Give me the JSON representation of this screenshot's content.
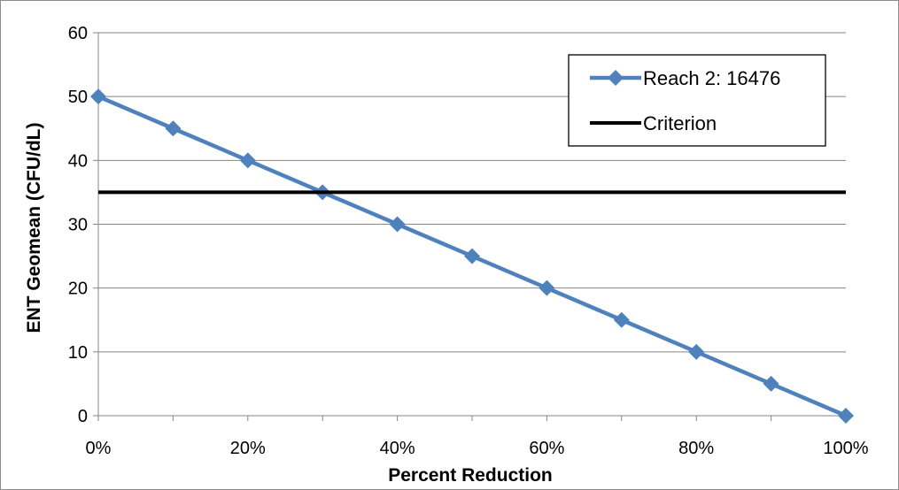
{
  "chart_data": {
    "type": "line",
    "xlabel": "Percent Reduction",
    "ylabel": "ENT Geomean (CFU/dL)",
    "x": [
      "0%",
      "10%",
      "20%",
      "30%",
      "40%",
      "50%",
      "60%",
      "70%",
      "80%",
      "90%",
      "100%"
    ],
    "x_tick_labels": [
      "0%",
      "20%",
      "40%",
      "60%",
      "80%",
      "100%"
    ],
    "xlim": [
      0,
      100
    ],
    "ylim": [
      0,
      60
    ],
    "y_ticks": [
      0,
      10,
      20,
      30,
      40,
      50,
      60
    ],
    "grid": "horizontal",
    "legend_position": "top-right",
    "series": [
      {
        "name": "Reach 2: 16476",
        "x_values": [
          0,
          10,
          20,
          30,
          40,
          50,
          60,
          70,
          80,
          90,
          100
        ],
        "values": [
          50,
          45,
          40,
          35,
          30,
          25,
          20,
          15,
          10,
          5,
          0
        ],
        "color": "#4f81bd",
        "marker": "diamond"
      },
      {
        "name": "Criterion",
        "x_values": [
          0,
          100
        ],
        "values": [
          35,
          35
        ],
        "color": "#000000",
        "marker": "none"
      }
    ]
  }
}
